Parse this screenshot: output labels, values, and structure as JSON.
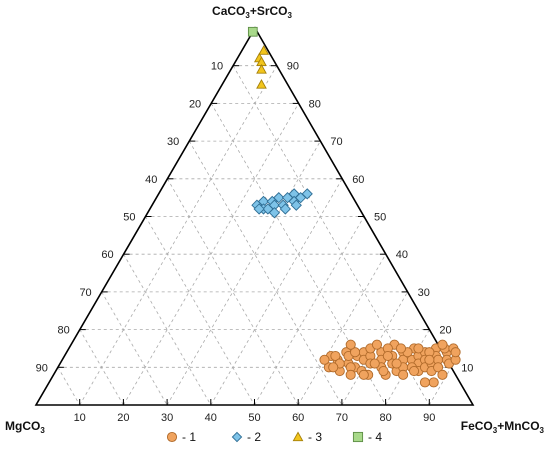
{
  "chart_data": {
    "type": "scatter",
    "subtype": "ternary",
    "grid": true,
    "grid_step": 10,
    "vertices": {
      "top": "CaCO3+SrCO3",
      "left": "MgCO3",
      "right": "FeCO3+MnCO3"
    },
    "axes": {
      "left_edge_ticks": [
        "10",
        "20",
        "30",
        "40",
        "50",
        "60",
        "70",
        "80",
        "90"
      ],
      "right_edge_ticks": [
        "90",
        "80",
        "70",
        "60",
        "50",
        "40",
        "30",
        "20",
        "10"
      ],
      "bottom_edge_ticks": [
        "10",
        "20",
        "30",
        "40",
        "50",
        "60",
        "70",
        "80",
        "90"
      ]
    },
    "legend": {
      "placement": "bottom-center",
      "entries": [
        {
          "marker": "circle",
          "label": "- 1",
          "color": "#f0a35e",
          "stroke": "#b06a2a"
        },
        {
          "marker": "diamond",
          "label": "- 2",
          "color": "#7ec3e8",
          "stroke": "#2f6e95"
        },
        {
          "marker": "triangle",
          "label": "- 3",
          "color": "#f2c51c",
          "stroke": "#a5800a"
        },
        {
          "marker": "square",
          "label": "- 4",
          "color": "#a8d98a",
          "stroke": "#5d8c45"
        }
      ]
    },
    "series": [
      {
        "name": "1",
        "points": [
          {
            "x": 61,
            "y": 13
          },
          {
            "x": 62,
            "y": 10
          },
          {
            "x": 63,
            "y": 12
          },
          {
            "x": 64,
            "y": 14
          },
          {
            "x": 65,
            "y": 9
          },
          {
            "x": 66,
            "y": 11
          },
          {
            "x": 67,
            "y": 13
          },
          {
            "x": 68,
            "y": 10
          },
          {
            "x": 68,
            "y": 14
          },
          {
            "x": 69,
            "y": 12
          },
          {
            "x": 70,
            "y": 9
          },
          {
            "x": 70,
            "y": 13
          },
          {
            "x": 71,
            "y": 11
          },
          {
            "x": 72,
            "y": 14
          },
          {
            "x": 72,
            "y": 8
          },
          {
            "x": 73,
            "y": 12
          },
          {
            "x": 74,
            "y": 10
          },
          {
            "x": 74,
            "y": 16
          },
          {
            "x": 75,
            "y": 13
          },
          {
            "x": 76,
            "y": 11
          },
          {
            "x": 76,
            "y": 8
          },
          {
            "x": 77,
            "y": 14
          },
          {
            "x": 78,
            "y": 12
          },
          {
            "x": 78,
            "y": 9
          },
          {
            "x": 79,
            "y": 10
          },
          {
            "x": 79,
            "y": 15
          },
          {
            "x": 80,
            "y": 12
          },
          {
            "x": 80,
            "y": 8
          },
          {
            "x": 81,
            "y": 13
          },
          {
            "x": 82,
            "y": 11
          },
          {
            "x": 82,
            "y": 14
          },
          {
            "x": 83,
            "y": 9
          },
          {
            "x": 83,
            "y": 12
          },
          {
            "x": 84,
            "y": 10
          },
          {
            "x": 84,
            "y": 15
          },
          {
            "x": 85,
            "y": 13
          },
          {
            "x": 85,
            "y": 11
          },
          {
            "x": 86,
            "y": 12
          },
          {
            "x": 86,
            "y": 9
          },
          {
            "x": 87,
            "y": 14
          },
          {
            "x": 87,
            "y": 10
          },
          {
            "x": 88,
            "y": 12
          },
          {
            "x": 88,
            "y": 6
          },
          {
            "x": 89,
            "y": 11
          },
          {
            "x": 89,
            "y": 8
          },
          {
            "x": 65,
            "y": 13
          },
          {
            "x": 67,
            "y": 10
          },
          {
            "x": 69,
            "y": 15
          },
          {
            "x": 71,
            "y": 8
          },
          {
            "x": 73,
            "y": 15
          },
          {
            "x": 75,
            "y": 9
          },
          {
            "x": 77,
            "y": 11
          },
          {
            "x": 81,
            "y": 10
          },
          {
            "x": 62,
            "y": 13
          },
          {
            "x": 66,
            "y": 14
          },
          {
            "x": 86,
            "y": 15
          },
          {
            "x": 83,
            "y": 14
          },
          {
            "x": 78,
            "y": 14
          },
          {
            "x": 80,
            "y": 15
          },
          {
            "x": 84,
            "y": 12
          },
          {
            "x": 60,
            "y": 12
          },
          {
            "x": 64,
            "y": 11
          },
          {
            "x": 70,
            "y": 16
          },
          {
            "x": 74,
            "y": 13
          },
          {
            "x": 76,
            "y": 15
          },
          {
            "x": 82,
            "y": 9
          },
          {
            "x": 88,
            "y": 15
          },
          {
            "x": 90,
            "y": 12
          },
          {
            "x": 72,
            "y": 11
          },
          {
            "x": 68,
            "y": 8
          },
          {
            "x": 86,
            "y": 6
          },
          {
            "x": 64,
            "y": 16
          },
          {
            "x": 85,
            "y": 16
          },
          {
            "x": 89,
            "y": 14
          },
          {
            "x": 63,
            "y": 10
          }
        ]
      },
      {
        "name": "2",
        "points": [
          {
            "x": 24,
            "y": 53
          },
          {
            "x": 25,
            "y": 54
          },
          {
            "x": 26,
            "y": 52
          },
          {
            "x": 27,
            "y": 54
          },
          {
            "x": 27,
            "y": 52
          },
          {
            "x": 28,
            "y": 55
          },
          {
            "x": 28,
            "y": 53
          },
          {
            "x": 29,
            "y": 51
          },
          {
            "x": 30,
            "y": 55
          },
          {
            "x": 30,
            "y": 53
          },
          {
            "x": 31,
            "y": 56
          },
          {
            "x": 31,
            "y": 52
          },
          {
            "x": 32,
            "y": 54
          },
          {
            "x": 33,
            "y": 55
          },
          {
            "x": 25,
            "y": 52
          },
          {
            "x": 33,
            "y": 53
          },
          {
            "x": 34,
            "y": 56
          }
        ]
      },
      {
        "name": "3",
        "points": [
          {
            "x": 5,
            "y": 92
          },
          {
            "x": 6,
            "y": 91
          },
          {
            "x": 7,
            "y": 89
          },
          {
            "x": 9,
            "y": 85
          },
          {
            "x": 5,
            "y": 94
          }
        ]
      },
      {
        "name": "4",
        "points": [
          {
            "x": 0,
            "y": 99
          }
        ]
      }
    ]
  }
}
